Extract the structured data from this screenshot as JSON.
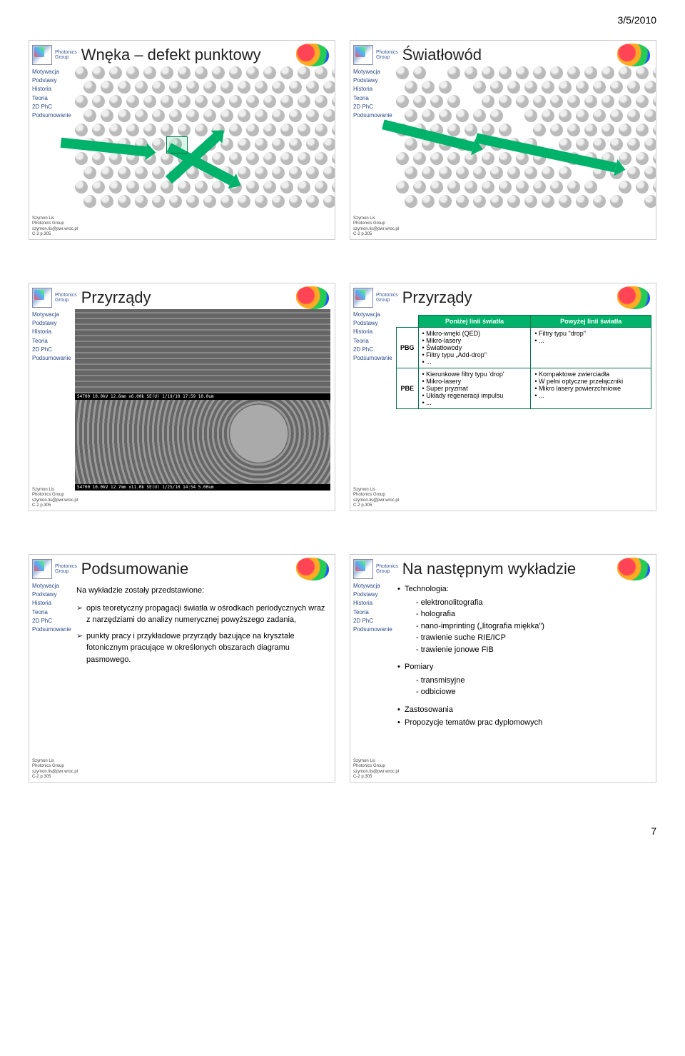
{
  "date": "3/5/2010",
  "page_number": "7",
  "logo_text": "Photonics\nGroup",
  "sidebar_items": [
    "Motywacja",
    "Podstawy",
    "Historia",
    "Teoria",
    "2D PhC",
    "Podsumowanie"
  ],
  "footer_lines": [
    "Szymon Lis",
    "Photonics Group",
    "szymon.lis@pwr.wroc.pl",
    "C-2 p.305"
  ],
  "slides": {
    "s1": {
      "title": "Wnęka – defekt punktowy"
    },
    "s2": {
      "title": "Światłowód"
    },
    "s3": {
      "title": "Przyrządy",
      "sem_top": "S4700 10.0kV 12.6mm x6.00k SE(U) 1/19/10 17:59        10.0um",
      "sem_bot": "S4700 10.0kV 12.7mm x11.0k SE(U) 1/25/10 14:54        5.00um"
    },
    "s4": {
      "title": "Przyrządy",
      "col1": "Poniżej linii światła",
      "col2": "Powyżej linii światła",
      "r1h": "PBG",
      "r1c1": "• Mikro-wnęki (QED)\n• Mikro-lasery\n• Światłowody\n• Filtry typu „Add-drop\"\n• ...",
      "r1c2": "• Filtry typu \"drop\"\n• ...",
      "r2h": "PBE",
      "r2c1": "• Kierunkowe filtry typu 'drop'\n• Mikro-lasery\n• Super pryzmat\n• Układy regeneracji impulsu\n• ...",
      "r2c2": "• Kompaktowe zwierciadła\n• W pełni optyczne przełączniki\n• Mikro lasery powierzchniowe\n• ..."
    },
    "s5": {
      "title": "Podsumowanie",
      "intro": "Na wykładzie zostały przedstawione:",
      "b1": "opis teoretyczny propagacji światła w ośrodkach periodycznych wraz z narzędziami do analizy numerycznej powyższego zadania,",
      "b2": "punkty pracy i przykładowe przyrządy bazujące na krysztale fotonicznym pracujące w określonych obszarach diagramu pasmowego."
    },
    "s6": {
      "title": "Na następnym wykładzie",
      "g1": "Technologia:",
      "g1_items": [
        "- elektronolitografia",
        "- holografia",
        "- nano-imprinting („litografia miękka\")",
        "- trawienie suche RIE/ICP",
        "- trawienie jonowe FIB"
      ],
      "g2": "Pomiary",
      "g2_items": [
        "- transmisyjne",
        "- odbiciowe"
      ],
      "g3": "Zastosowania",
      "g4": "Propozycje tematów prac dyplomowych"
    }
  }
}
